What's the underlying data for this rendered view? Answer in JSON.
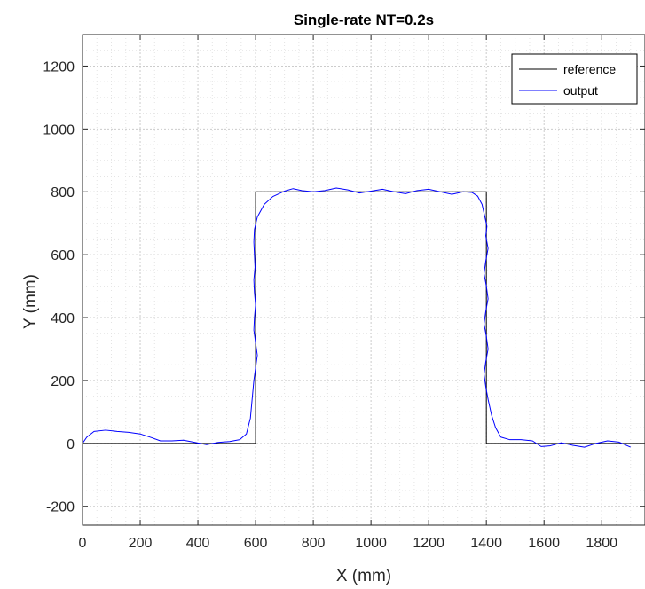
{
  "chart_data": {
    "type": "line",
    "title": "Single-rate NT=0.2s",
    "xlabel": "X (mm)",
    "ylabel": "Y (mm)",
    "xlim": [
      0,
      1950
    ],
    "ylim": [
      -260,
      1300
    ],
    "xticks": [
      0,
      200,
      400,
      600,
      800,
      1000,
      1200,
      1400,
      1600,
      1800
    ],
    "yticks": [
      -200,
      0,
      200,
      400,
      600,
      800,
      1000,
      1200
    ],
    "x_minor_step": 50,
    "y_minor_step": 50,
    "grid": true,
    "legend_position": "top-right",
    "colors": {
      "reference": "#000000",
      "output": "#0000ff",
      "grid_major": "#cccccc",
      "grid_minor": "#e4e4e4"
    },
    "series": [
      {
        "name": "reference",
        "color": "#000000",
        "points": [
          [
            0,
            0
          ],
          [
            600,
            0
          ],
          [
            600,
            800
          ],
          [
            1400,
            800
          ],
          [
            1400,
            0
          ],
          [
            1950,
            0
          ]
        ]
      },
      {
        "name": "output",
        "color": "#0000ff",
        "points": [
          [
            0,
            0
          ],
          [
            15,
            20
          ],
          [
            40,
            38
          ],
          [
            80,
            42
          ],
          [
            120,
            38
          ],
          [
            160,
            35
          ],
          [
            200,
            30
          ],
          [
            240,
            18
          ],
          [
            270,
            8
          ],
          [
            310,
            8
          ],
          [
            350,
            10
          ],
          [
            390,
            3
          ],
          [
            430,
            -4
          ],
          [
            470,
            3
          ],
          [
            510,
            6
          ],
          [
            545,
            12
          ],
          [
            568,
            30
          ],
          [
            582,
            80
          ],
          [
            588,
            140
          ],
          [
            594,
            200
          ],
          [
            600,
            240
          ],
          [
            606,
            280
          ],
          [
            600,
            320
          ],
          [
            594,
            360
          ],
          [
            596,
            400
          ],
          [
            600,
            440
          ],
          [
            596,
            480
          ],
          [
            594,
            520
          ],
          [
            598,
            560
          ],
          [
            596,
            600
          ],
          [
            594,
            640
          ],
          [
            596,
            680
          ],
          [
            606,
            720
          ],
          [
            630,
            760
          ],
          [
            660,
            785
          ],
          [
            700,
            802
          ],
          [
            730,
            810
          ],
          [
            760,
            804
          ],
          [
            800,
            800
          ],
          [
            840,
            804
          ],
          [
            880,
            812
          ],
          [
            920,
            806
          ],
          [
            960,
            796
          ],
          [
            1000,
            802
          ],
          [
            1040,
            808
          ],
          [
            1080,
            800
          ],
          [
            1120,
            794
          ],
          [
            1160,
            804
          ],
          [
            1200,
            808
          ],
          [
            1240,
            800
          ],
          [
            1280,
            792
          ],
          [
            1320,
            800
          ],
          [
            1350,
            798
          ],
          [
            1370,
            786
          ],
          [
            1385,
            760
          ],
          [
            1395,
            720
          ],
          [
            1402,
            690
          ],
          [
            1398,
            660
          ],
          [
            1406,
            620
          ],
          [
            1398,
            580
          ],
          [
            1392,
            540
          ],
          [
            1400,
            500
          ],
          [
            1406,
            460
          ],
          [
            1398,
            420
          ],
          [
            1392,
            380
          ],
          [
            1400,
            340
          ],
          [
            1406,
            300
          ],
          [
            1398,
            260
          ],
          [
            1392,
            220
          ],
          [
            1398,
            180
          ],
          [
            1406,
            140
          ],
          [
            1418,
            90
          ],
          [
            1432,
            50
          ],
          [
            1450,
            20
          ],
          [
            1480,
            12
          ],
          [
            1520,
            12
          ],
          [
            1560,
            8
          ],
          [
            1590,
            -10
          ],
          [
            1620,
            -8
          ],
          [
            1660,
            2
          ],
          [
            1700,
            -6
          ],
          [
            1740,
            -12
          ],
          [
            1780,
            0
          ],
          [
            1820,
            8
          ],
          [
            1860,
            4
          ],
          [
            1900,
            -12
          ]
        ]
      }
    ]
  }
}
